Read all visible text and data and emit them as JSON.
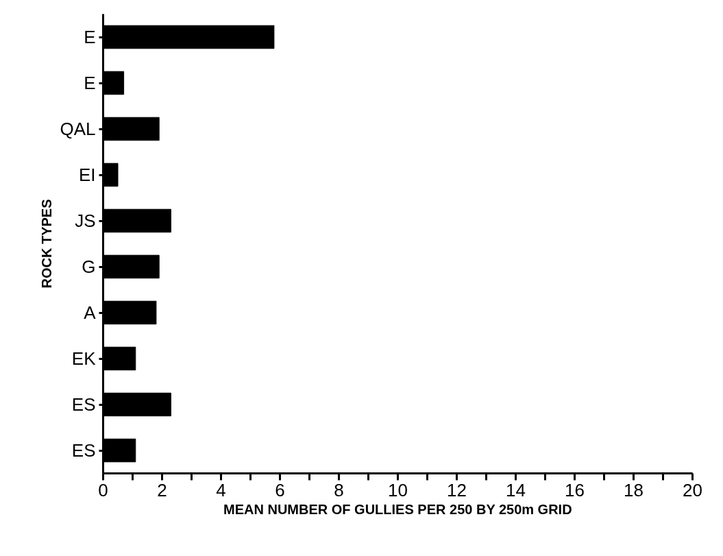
{
  "chart_data": {
    "type": "bar",
    "orientation": "horizontal",
    "xlabel": "MEAN NUMBER OF GULLIES PER 250 BY 250m GRID",
    "ylabel": "ROCK TYPES",
    "categories": [
      "E",
      "E",
      "QAL",
      "EI",
      "JS",
      "G",
      "A",
      "EK",
      "ES",
      "ES"
    ],
    "values": [
      5.8,
      0.7,
      1.9,
      0.5,
      2.3,
      1.9,
      1.8,
      1.1,
      2.3,
      1.1
    ],
    "color": "#000000",
    "xlim": [
      0,
      20
    ],
    "xticks": [
      0,
      {
        "value": 1,
        "label": null
      },
      2,
      {
        "value": 3,
        "label": null
      },
      4,
      {
        "value": 5,
        "label": null
      },
      6,
      {
        "value": 7,
        "label": null
      },
      8,
      {
        "value": 9,
        "label": null
      },
      10,
      {
        "value": 11,
        "label": null
      },
      12,
      {
        "value": 13,
        "label": null
      },
      14,
      {
        "value": 15,
        "label": null
      },
      16,
      {
        "value": 17,
        "label": null
      },
      18,
      {
        "value": 19,
        "label": null
      },
      20
    ],
    "grid": false
  }
}
